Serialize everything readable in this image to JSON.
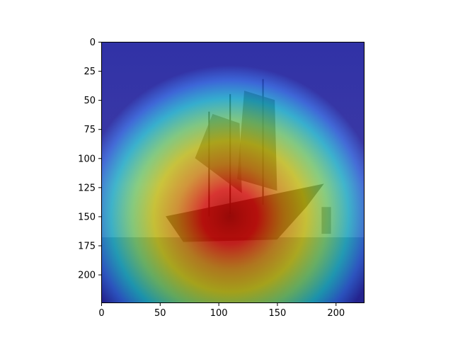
{
  "chart_data": {
    "type": "heatmap",
    "title": "",
    "xlabel": "",
    "ylabel": "",
    "xlim": [
      0,
      224
    ],
    "ylim": [
      224,
      0
    ],
    "x_ticks": [
      0,
      50,
      100,
      150,
      200
    ],
    "y_ticks": [
      0,
      25,
      50,
      75,
      100,
      125,
      150,
      175,
      200
    ],
    "x_tick_labels": [
      "0",
      "50",
      "100",
      "150",
      "200"
    ],
    "y_tick_labels": [
      "0",
      "25",
      "50",
      "75",
      "100",
      "125",
      "150",
      "175",
      "200"
    ],
    "colormap": "jet",
    "overlay_image": "sailing-ship-at-sea",
    "activation_peak": [
      118,
      150
    ],
    "grid": false,
    "legend": "none"
  }
}
